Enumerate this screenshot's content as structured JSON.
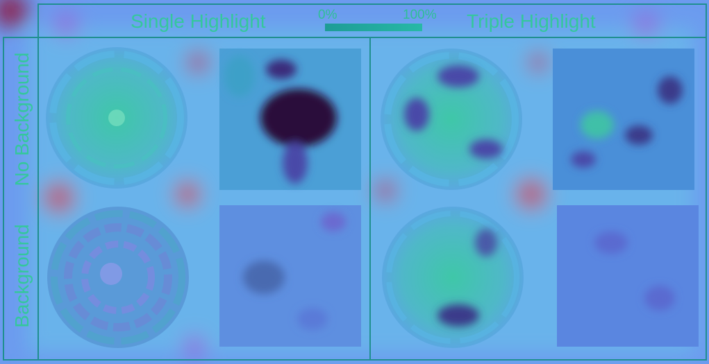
{
  "columns": [
    {
      "id": "single",
      "label": "Single Highlight"
    },
    {
      "id": "triple",
      "label": "Triple Highlight"
    }
  ],
  "rows": [
    {
      "id": "no-background",
      "label": "No Background"
    },
    {
      "id": "background",
      "label": "Background"
    }
  ],
  "colorbar": {
    "min_label": "0%",
    "max_label": "100%"
  },
  "colors": {
    "field": "#6f9cf0",
    "label": "#34c79c",
    "frame": "#1f8f8f",
    "disk": "#3ec6b0",
    "hot": "#2a0a3a",
    "cool": "#40d0b0"
  }
}
